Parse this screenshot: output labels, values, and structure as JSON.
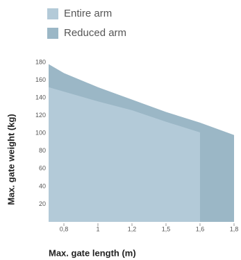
{
  "chart_data": {
    "type": "area",
    "categories": [
      null,
      "0,8",
      "1",
      "1,2",
      "1,5",
      "1,6",
      "1,8"
    ],
    "series": [
      {
        "name": "Entire arm",
        "color": "#b3cad8",
        "values": [
          152,
          147,
          136,
          126,
          113,
          101,
          null
        ]
      },
      {
        "name": "Reduced arm",
        "color": "#9bb7c6",
        "values": [
          178,
          168,
          152,
          138,
          124,
          112,
          98
        ]
      }
    ],
    "ylim": [
      0,
      180
    ],
    "yticks": [
      20,
      40,
      60,
      80,
      100,
      120,
      140,
      160,
      180
    ],
    "ylabel": "Max. gate weight (kg)",
    "xlabel": "Max. gate length (m)",
    "grid": false
  }
}
